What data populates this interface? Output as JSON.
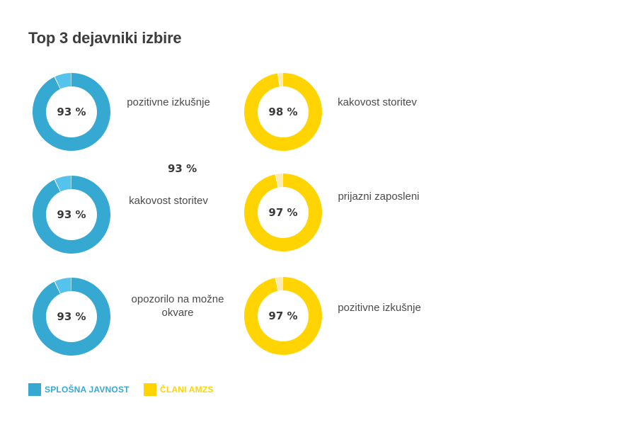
{
  "title": "Top 3 dejavniki izbire",
  "colors": {
    "general": "#36a9d3",
    "general_gap": "#56c3ec",
    "members": "#ffd400",
    "members_gap": "#fbeab4"
  },
  "stray_label": "93 %",
  "chart_data": {
    "type": "pie",
    "title": "Top 3 dejavniki izbire",
    "legend": [
      {
        "name": "SPLOŠNA JAVNOST",
        "color": "#36a9d3"
      },
      {
        "name": "ČLANI AMZS",
        "color": "#ffd400"
      }
    ],
    "legend_position": "bottom-left",
    "series": [
      {
        "name": "SPLOŠNA JAVNOST",
        "items": [
          {
            "label": "pozitivne izkušnje",
            "value": 93,
            "display": "93 %"
          },
          {
            "label": "kakovost storitev",
            "value": 93,
            "display": "93 %"
          },
          {
            "label": "opozorilo na možne okvare",
            "value": 93,
            "display": "93 %"
          }
        ]
      },
      {
        "name": "ČLANI AMZS",
        "items": [
          {
            "label": "kakovost storitev",
            "value": 98,
            "display": "98 %"
          },
          {
            "label": "prijazni zaposleni",
            "value": 97,
            "display": "97 %"
          },
          {
            "label": "pozitivne izkušnje",
            "value": 97,
            "display": "97 %"
          }
        ]
      }
    ]
  }
}
